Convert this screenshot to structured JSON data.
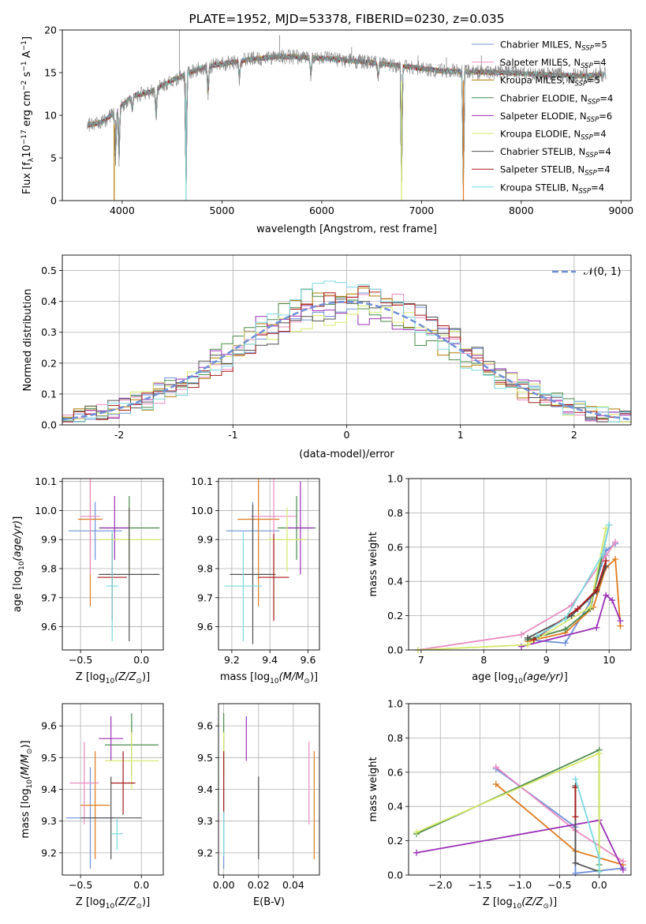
{
  "chart_data": [
    {
      "id": "spectrum",
      "type": "line",
      "title": "PLATE=1952, MJD=53378, FIBERID=0230, z=0.035",
      "xlabel": "wavelength [Angstrom, rest frame]",
      "ylabel_parts": [
        "Flux [f",
        "λ",
        "10",
        "−17",
        " erg cm",
        "−2",
        " s",
        "−1",
        " A",
        "−1",
        "]"
      ],
      "xlim": [
        3400,
        9100
      ],
      "ylim": [
        0,
        20
      ],
      "xticks": [
        4000,
        5000,
        6000,
        7000,
        8000,
        9000
      ],
      "yticks": [
        0,
        5,
        10,
        15,
        20
      ],
      "grid": false,
      "legend_position": "top-right",
      "series": [
        {
          "name": "Chabrier MILES",
          "nssp": "5",
          "color": "#6f90d8"
        },
        {
          "name": "Salpeter MILES",
          "nssp": "4",
          "color": "#e98bc0"
        },
        {
          "name": "Kroupa MILES",
          "nssp": "5",
          "color": "#b07800"
        },
        {
          "name": "Chabrier ELODIE",
          "nssp": "4",
          "color": "#4a8a4a"
        },
        {
          "name": "Salpeter ELODIE",
          "nssp": "6",
          "color": "#9b30b5"
        },
        {
          "name": "Kroupa ELODIE",
          "nssp": "4",
          "color": "#d6e86a"
        },
        {
          "name": "Chabrier STELIB",
          "nssp": "4",
          "color": "#505050"
        },
        {
          "name": "Salpeter STELIB",
          "nssp": "4",
          "color": "#a81818"
        },
        {
          "name": "Kroupa STELIB",
          "nssp": "4",
          "color": "#7ad8de"
        }
      ],
      "data_color": "#808080",
      "continuum": [
        [
          3650,
          8.8
        ],
        [
          3800,
          9.2
        ],
        [
          3950,
          10.6
        ],
        [
          4100,
          12.2
        ],
        [
          4300,
          12.8
        ],
        [
          4500,
          14.1
        ],
        [
          4800,
          15.6
        ],
        [
          5000,
          16.0
        ],
        [
          5300,
          16.6
        ],
        [
          5600,
          16.9
        ],
        [
          6000,
          16.7
        ],
        [
          6400,
          16.3
        ],
        [
          6800,
          15.8
        ],
        [
          7200,
          15.2
        ],
        [
          7500,
          15.1
        ],
        [
          7800,
          15.0
        ],
        [
          8200,
          14.8
        ],
        [
          8600,
          14.6
        ],
        [
          8850,
          14.8
        ]
      ],
      "absorption_lines": [
        {
          "x": 3933,
          "y": 4.2
        },
        {
          "x": 3968,
          "y": 4.0
        },
        {
          "x": 4102,
          "y": 10.4
        },
        {
          "x": 4340,
          "y": 9.5
        },
        {
          "x": 4640,
          "y": 0.0
        },
        {
          "x": 4861,
          "y": 11.8
        },
        {
          "x": 5175,
          "y": 14.2
        },
        {
          "x": 5892,
          "y": 14.5
        },
        {
          "x": 6565,
          "y": 14.2
        },
        {
          "x": 6800,
          "y": 0.0
        },
        {
          "x": 7420,
          "y": 0.0
        }
      ],
      "emission_spikes": [
        {
          "x": 4575,
          "y": 20.0
        },
        {
          "x": 5577,
          "y": 19.4
        },
        {
          "x": 6300,
          "y": 18.0
        },
        {
          "x": 6500,
          "y": 17.0
        },
        {
          "x": 6965,
          "y": 17.0
        },
        {
          "x": 7250,
          "y": 16.8
        },
        {
          "x": 7600,
          "y": 17.0
        },
        {
          "x": 7790,
          "y": 16.5
        },
        {
          "x": 7915,
          "y": 16.4
        },
        {
          "x": 8400,
          "y": 16.2
        },
        {
          "x": 8650,
          "y": 16.2
        },
        {
          "x": 8790,
          "y": 16.3
        }
      ]
    },
    {
      "id": "residuals",
      "type": "histogram",
      "xlabel": "(data-model)/error",
      "ylabel": "Normed distribution",
      "xlim": [
        -2.5,
        2.5
      ],
      "ylim": [
        0,
        0.55
      ],
      "xticks": [
        -2,
        -1,
        0,
        1,
        2
      ],
      "yticks": [
        0.0,
        0.1,
        0.2,
        0.3,
        0.4,
        0.5
      ],
      "grid": true,
      "legend_position": "top-right",
      "reference_curve": {
        "label": "𝒩(0, 1)",
        "mean": 0,
        "sigma": 1,
        "color": "#6f90d8",
        "style": "dashed"
      },
      "bin_width": 0.1,
      "bins_from": -2.5,
      "bins_to": 2.5,
      "spread": 0.06
    },
    {
      "id": "age-vs-Z",
      "type": "errorbar",
      "xlabel_main": "Z [log",
      "xlabel_sub": "10",
      "xlabel_rest": "(Z/Z",
      "xlabel_end": ")]",
      "ylabel": "age  [log10(age/yr)]",
      "xlim": [
        -0.65,
        0.18
      ],
      "ylim": [
        9.52,
        10.11
      ],
      "xticks": [
        -0.5,
        0.0
      ],
      "xtick_labels": [
        "−0.5",
        "0.0"
      ],
      "yticks": [
        9.6,
        9.7,
        9.8,
        9.9,
        10.0,
        10.1
      ],
      "grid": true,
      "points": [
        {
          "x": -0.38,
          "y": 9.93,
          "xerr": 0.22,
          "yerr": 0.1,
          "color": "#6f90d8"
        },
        {
          "x": -0.42,
          "y": 9.97,
          "xerr": 0.1,
          "yerr": 0.3,
          "color": "#e07a1f"
        },
        {
          "x": -0.42,
          "y": 9.98,
          "xerr": 0.08,
          "yerr": 0.2,
          "color": "#e98bc0"
        },
        {
          "x": -0.1,
          "y": 9.94,
          "xerr": 0.25,
          "yerr": 0.11,
          "color": "#4a8a4a"
        },
        {
          "x": -0.22,
          "y": 9.94,
          "xerr": 0.12,
          "yerr": 0.11,
          "color": "#9b30b5"
        },
        {
          "x": -0.1,
          "y": 9.9,
          "xerr": 0.25,
          "yerr": 0.11,
          "color": "#d6e86a"
        },
        {
          "x": -0.1,
          "y": 9.78,
          "xerr": 0.25,
          "yerr": 0.23,
          "color": "#505050"
        },
        {
          "x": -0.24,
          "y": 9.77,
          "xerr": 0.12,
          "yerr": 0.15,
          "color": "#a81818"
        },
        {
          "x": -0.24,
          "y": 9.74,
          "xerr": 0.05,
          "yerr": 0.19,
          "color": "#7ad8de"
        }
      ]
    },
    {
      "id": "age-vs-mass",
      "type": "errorbar",
      "xlabel_main": "mass [log",
      "xlabel_sub": "10",
      "xlabel_rest": "(M/M",
      "xlabel_end": ")]",
      "ylabel": "",
      "xlim": [
        9.13,
        9.66
      ],
      "ylim": [
        9.52,
        10.11
      ],
      "xticks": [
        9.2,
        9.4,
        9.6
      ],
      "xtick_labels": [
        "9.2",
        "9.4",
        "9.6"
      ],
      "yticks": [
        9.6,
        9.7,
        9.8,
        9.9,
        10.0,
        10.1
      ],
      "grid": true,
      "points": [
        {
          "x": 9.31,
          "y": 9.93,
          "xerr": 0.14,
          "yerr": 0.1,
          "color": "#6f90d8"
        },
        {
          "x": 9.34,
          "y": 9.97,
          "xerr": 0.11,
          "yerr": 0.3,
          "color": "#e07a1f"
        },
        {
          "x": 9.42,
          "y": 9.98,
          "xerr": 0.12,
          "yerr": 0.18,
          "color": "#e98bc0"
        },
        {
          "x": 9.54,
          "y": 9.94,
          "xerr": 0.1,
          "yerr": 0.11,
          "color": "#4a8a4a"
        },
        {
          "x": 9.56,
          "y": 9.94,
          "xerr": 0.07,
          "yerr": 0.16,
          "color": "#9b30b5"
        },
        {
          "x": 9.49,
          "y": 9.9,
          "xerr": 0.1,
          "yerr": 0.11,
          "color": "#d6e86a"
        },
        {
          "x": 9.31,
          "y": 9.78,
          "xerr": 0.12,
          "yerr": 0.24,
          "color": "#505050"
        },
        {
          "x": 9.42,
          "y": 9.77,
          "xerr": 0.08,
          "yerr": 0.15,
          "color": "#a81818"
        },
        {
          "x": 9.26,
          "y": 9.74,
          "xerr": 0.1,
          "yerr": 0.19,
          "color": "#7ad8de"
        }
      ]
    },
    {
      "id": "weight-vs-age",
      "type": "line",
      "xlabel": "age  [log10(age/yr)]",
      "ylabel": "mass weight",
      "xlim": [
        6.8,
        10.35
      ],
      "ylim": [
        0,
        1
      ],
      "xticks": [
        7,
        8,
        9,
        10
      ],
      "yticks": [
        0.0,
        0.2,
        0.4,
        0.6,
        0.8,
        1.0
      ],
      "grid": true,
      "series": [
        {
          "color": "#6f90d8",
          "x": [
            8.7,
            9.3,
            9.7,
            9.95,
            10.1
          ],
          "y": [
            0.06,
            0.04,
            0.28,
            0.58,
            0.62
          ]
        },
        {
          "color": "#e07a1f",
          "x": [
            8.7,
            9.3,
            9.75,
            9.95,
            10.1,
            10.18
          ],
          "y": [
            0.05,
            0.1,
            0.25,
            0.48,
            0.53,
            0.14
          ]
        },
        {
          "color": "#e98bc0",
          "x": [
            6.95,
            8.6,
            9.4,
            9.95,
            10.1
          ],
          "y": [
            0.0,
            0.09,
            0.26,
            0.55,
            0.63
          ]
        },
        {
          "color": "#4a8a4a",
          "x": [
            8.7,
            9.3,
            9.7,
            10.0
          ],
          "y": [
            0.06,
            0.12,
            0.24,
            0.73
          ]
        },
        {
          "color": "#9b30b5",
          "x": [
            8.6,
            9.8,
            9.95,
            10.05,
            10.18
          ],
          "y": [
            0.02,
            0.13,
            0.32,
            0.29,
            0.17
          ]
        },
        {
          "color": "#d6e86a",
          "x": [
            6.95,
            8.7,
            9.7,
            9.95
          ],
          "y": [
            0.0,
            0.03,
            0.25,
            0.71
          ]
        },
        {
          "color": "#505050",
          "x": [
            8.7,
            9.4,
            9.8,
            9.95
          ],
          "y": [
            0.07,
            0.2,
            0.34,
            0.49
          ]
        },
        {
          "color": "#a81818",
          "x": [
            8.8,
            9.5,
            9.8,
            9.95
          ],
          "y": [
            0.06,
            0.24,
            0.35,
            0.52
          ]
        },
        {
          "color": "#7ad8de",
          "x": [
            8.85,
            9.3,
            9.9,
            10.0
          ],
          "y": [
            0.08,
            0.18,
            0.56,
            0.73
          ]
        }
      ]
    },
    {
      "id": "mass-vs-Z",
      "type": "errorbar",
      "xlabel_main": "Z [log",
      "xlabel_sub": "10",
      "xlabel_rest": "(Z/Z",
      "xlabel_end": ")]",
      "ylabel": "mass [log10(M/M☉)]",
      "xlim": [
        -0.65,
        0.18
      ],
      "ylim": [
        9.13,
        9.67
      ],
      "xticks": [
        -0.5,
        0.0
      ],
      "xtick_labels": [
        "−0.5",
        "0.0"
      ],
      "yticks": [
        9.2,
        9.3,
        9.4,
        9.5,
        9.6
      ],
      "grid": true,
      "points": [
        {
          "x": -0.42,
          "y": 9.31,
          "xerr": 0.2,
          "yerr": 0.16,
          "color": "#6f90d8"
        },
        {
          "x": -0.38,
          "y": 9.35,
          "xerr": 0.12,
          "yerr": 0.17,
          "color": "#e07a1f"
        },
        {
          "x": -0.47,
          "y": 9.42,
          "xerr": 0.12,
          "yerr": 0.13,
          "color": "#e98bc0"
        },
        {
          "x": -0.08,
          "y": 9.54,
          "xerr": 0.22,
          "yerr": 0.1,
          "color": "#4a8a4a"
        },
        {
          "x": -0.25,
          "y": 9.56,
          "xerr": 0.1,
          "yerr": 0.07,
          "color": "#9b30b5"
        },
        {
          "x": -0.08,
          "y": 9.49,
          "xerr": 0.22,
          "yerr": 0.09,
          "color": "#d6e86a"
        },
        {
          "x": -0.25,
          "y": 9.31,
          "xerr": 0.25,
          "yerr": 0.13,
          "color": "#505050"
        },
        {
          "x": -0.15,
          "y": 9.42,
          "xerr": 0.1,
          "yerr": 0.1,
          "color": "#a81818"
        },
        {
          "x": -0.2,
          "y": 9.26,
          "xerr": 0.05,
          "yerr": 0.05,
          "color": "#7ad8de"
        }
      ]
    },
    {
      "id": "mass-vs-ebv",
      "type": "errorbar",
      "xlabel": "E(B-V)",
      "ylabel": "",
      "xlim": [
        -0.003,
        0.055
      ],
      "ylim": [
        9.13,
        9.67
      ],
      "xticks": [
        0.0,
        0.02,
        0.04
      ],
      "xtick_labels": [
        "0.00",
        "0.02",
        "0.04"
      ],
      "yticks": [
        9.2,
        9.3,
        9.4,
        9.5,
        9.6
      ],
      "grid": true,
      "points": [
        {
          "x": 0.0,
          "y": 9.31,
          "xerr": 0,
          "yerr": 0.16,
          "color": "#6f90d8"
        },
        {
          "x": 0.052,
          "y": 9.35,
          "xerr": 0,
          "yerr": 0.17,
          "color": "#e07a1f"
        },
        {
          "x": 0.049,
          "y": 9.42,
          "xerr": 0,
          "yerr": 0.13,
          "color": "#e98bc0"
        },
        {
          "x": 0.0,
          "y": 9.54,
          "xerr": 0,
          "yerr": 0.1,
          "color": "#4a8a4a"
        },
        {
          "x": 0.013,
          "y": 9.56,
          "xerr": 0,
          "yerr": 0.07,
          "color": "#9b30b5"
        },
        {
          "x": 0.0,
          "y": 9.49,
          "xerr": 0,
          "yerr": 0.09,
          "color": "#d6e86a"
        },
        {
          "x": 0.02,
          "y": 9.31,
          "xerr": 0,
          "yerr": 0.13,
          "color": "#505050"
        },
        {
          "x": 0.0,
          "y": 9.42,
          "xerr": 0,
          "yerr": 0.1,
          "color": "#a81818"
        },
        {
          "x": 0.0,
          "y": 9.26,
          "xerr": 0,
          "yerr": 0.07,
          "color": "#7ad8de"
        }
      ]
    },
    {
      "id": "weight-vs-Z",
      "type": "line",
      "xlabel_main": "Z [log",
      "xlabel_sub": "10",
      "xlabel_rest": "(Z/Z",
      "xlabel_end": ")]",
      "ylabel": "mass weight",
      "xlim": [
        -2.4,
        0.4
      ],
      "ylim": [
        0,
        1
      ],
      "xticks": [
        -2.0,
        -1.5,
        -1.0,
        -0.5,
        0.0
      ],
      "xtick_labels": [
        "−2.0",
        "−1.5",
        "−1.0",
        "−0.5",
        "0.0"
      ],
      "yticks": [
        0.0,
        0.2,
        0.4,
        0.6,
        0.8,
        1.0
      ],
      "grid": true,
      "series": [
        {
          "color": "#6f90d8",
          "x": [
            -1.3,
            -0.3,
            -0.3,
            0.3
          ],
          "y": [
            0.62,
            0.28,
            0.01,
            0.04
          ]
        },
        {
          "color": "#e07a1f",
          "x": [
            -1.3,
            -0.3,
            0.3
          ],
          "y": [
            0.53,
            0.14,
            0.06
          ]
        },
        {
          "color": "#e98bc0",
          "x": [
            -1.3,
            -0.3,
            0.3
          ],
          "y": [
            0.63,
            0.26,
            0.08
          ]
        },
        {
          "color": "#4a8a4a",
          "x": [
            -2.3,
            0.0,
            0.0
          ],
          "y": [
            0.24,
            0.73,
            0.06
          ]
        },
        {
          "color": "#9b30b5",
          "x": [
            -2.3,
            0.0,
            0.3
          ],
          "y": [
            0.13,
            0.32,
            0.03
          ]
        },
        {
          "color": "#d6e86a",
          "x": [
            -2.3,
            0.0,
            0.0
          ],
          "y": [
            0.25,
            0.71,
            0.03
          ]
        },
        {
          "color": "#505050",
          "x": [
            -0.3,
            -0.3,
            0.0
          ],
          "y": [
            0.52,
            0.07,
            0.02
          ]
        },
        {
          "color": "#a81818",
          "x": [
            -0.3,
            -0.3
          ],
          "y": [
            0.51,
            0.34
          ]
        },
        {
          "color": "#7ad8de",
          "x": [
            -0.3,
            0.0,
            0.0
          ],
          "y": [
            0.56,
            0.1,
            0.02
          ]
        }
      ]
    }
  ]
}
